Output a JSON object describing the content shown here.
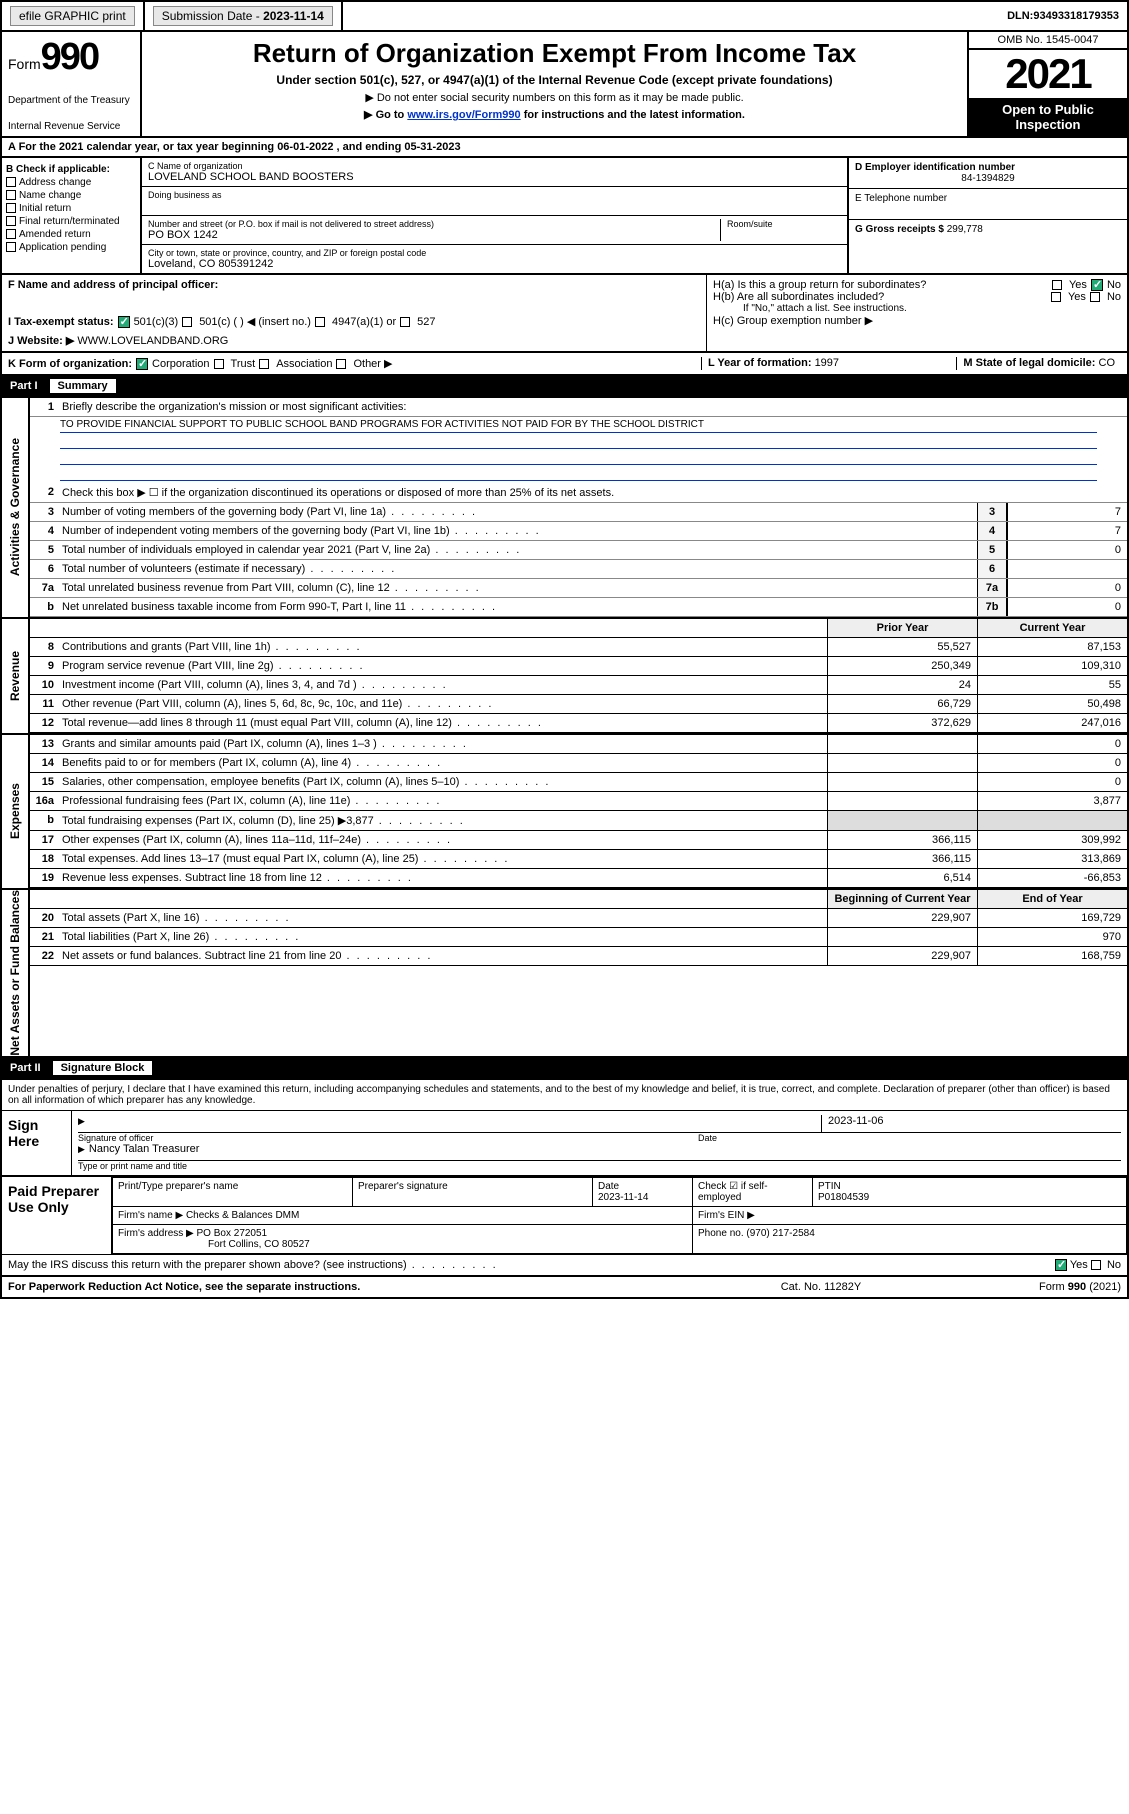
{
  "topbar": {
    "efile": "efile GRAPHIC print",
    "submission_label": "Submission Date - ",
    "submission_date": "2023-11-14",
    "dln_label": "DLN: ",
    "dln": "93493318179353"
  },
  "header": {
    "form_label": "Form",
    "form_no": "990",
    "dept": "Department of the Treasury",
    "irs": "Internal Revenue Service",
    "title": "Return of Organization Exempt From Income Tax",
    "subtitle": "Under section 501(c), 527, or 4947(a)(1) of the Internal Revenue Code (except private foundations)",
    "note1": "▶ Do not enter social security numbers on this form as it may be made public.",
    "note2_pre": "▶ Go to ",
    "note2_link": "www.irs.gov/Form990",
    "note2_post": " for instructions and the latest information.",
    "omb": "OMB No. 1545-0047",
    "year": "2021",
    "inspect": "Open to Public Inspection"
  },
  "rowA": "A For the 2021 calendar year, or tax year beginning 06-01-2022   , and ending 05-31-2023",
  "boxB": {
    "label": "B Check if applicable:",
    "items": [
      "Address change",
      "Name change",
      "Initial return",
      "Final return/terminated",
      "Amended return",
      "Application pending"
    ]
  },
  "boxC": {
    "name_lbl": "C Name of organization",
    "name": "LOVELAND SCHOOL BAND BOOSTERS",
    "dba_lbl": "Doing business as",
    "addr_lbl": "Number and street (or P.O. box if mail is not delivered to street address)",
    "room_lbl": "Room/suite",
    "addr": "PO BOX 1242",
    "city_lbl": "City or town, state or province, country, and ZIP or foreign postal code",
    "city": "Loveland, CO  805391242"
  },
  "boxD": {
    "lbl": "D Employer identification number",
    "val": "84-1394829"
  },
  "boxE": {
    "lbl": "E Telephone number"
  },
  "boxG": {
    "lbl": "G Gross receipts $ ",
    "val": "299,778"
  },
  "rowF": "F  Name and address of principal officer:",
  "rowH": {
    "ha": "H(a)  Is this a group return for subordinates?",
    "hb": "H(b)  Are all subordinates included?",
    "hb_note": "If \"No,\" attach a list. See instructions.",
    "hc": "H(c)  Group exemption number ▶",
    "yes": "Yes",
    "no": "No"
  },
  "rowI": {
    "lbl": "I   Tax-exempt status:",
    "o1": "501(c)(3)",
    "o2": "501(c) (  ) ◀ (insert no.)",
    "o3": "4947(a)(1) or",
    "o4": "527"
  },
  "rowJ": {
    "lbl": "J   Website: ▶",
    "val": "WWW.LOVELANDBAND.ORG"
  },
  "rowK": {
    "lbl": "K Form of organization:",
    "o1": "Corporation",
    "o2": "Trust",
    "o3": "Association",
    "o4": "Other ▶"
  },
  "rowL": {
    "lbl": "L Year of formation: ",
    "val": "1997"
  },
  "rowM": {
    "lbl": "M State of legal domicile: ",
    "val": "CO"
  },
  "part1": {
    "label": "Part I",
    "title": "Summary"
  },
  "summary": {
    "q1": "Briefly describe the organization's mission or most significant activities:",
    "mission": "TO PROVIDE FINANCIAL SUPPORT TO PUBLIC SCHOOL BAND PROGRAMS FOR ACTIVITIES NOT PAID FOR BY THE SCHOOL DISTRICT",
    "q2": "Check this box ▶ ☐  if the organization discontinued its operations or disposed of more than 25% of its net assets.",
    "lines_gov": [
      {
        "n": "3",
        "t": "Number of voting members of the governing body (Part VI, line 1a)",
        "box": "3",
        "v": "7"
      },
      {
        "n": "4",
        "t": "Number of independent voting members of the governing body (Part VI, line 1b)",
        "box": "4",
        "v": "7"
      },
      {
        "n": "5",
        "t": "Total number of individuals employed in calendar year 2021 (Part V, line 2a)",
        "box": "5",
        "v": "0"
      },
      {
        "n": "6",
        "t": "Total number of volunteers (estimate if necessary)",
        "box": "6",
        "v": ""
      },
      {
        "n": "7a",
        "t": "Total unrelated business revenue from Part VIII, column (C), line 12",
        "box": "7a",
        "v": "0"
      },
      {
        "n": "b",
        "t": "Net unrelated business taxable income from Form 990-T, Part I, line 11",
        "box": "7b",
        "v": "0"
      }
    ],
    "colhdr": {
      "prior": "Prior Year",
      "current": "Current Year",
      "beg": "Beginning of Current Year",
      "end": "End of Year"
    },
    "revenue": [
      {
        "n": "8",
        "t": "Contributions and grants (Part VIII, line 1h)",
        "p": "55,527",
        "c": "87,153"
      },
      {
        "n": "9",
        "t": "Program service revenue (Part VIII, line 2g)",
        "p": "250,349",
        "c": "109,310"
      },
      {
        "n": "10",
        "t": "Investment income (Part VIII, column (A), lines 3, 4, and 7d )",
        "p": "24",
        "c": "55"
      },
      {
        "n": "11",
        "t": "Other revenue (Part VIII, column (A), lines 5, 6d, 8c, 9c, 10c, and 11e)",
        "p": "66,729",
        "c": "50,498"
      },
      {
        "n": "12",
        "t": "Total revenue—add lines 8 through 11 (must equal Part VIII, column (A), line 12)",
        "p": "372,629",
        "c": "247,016"
      }
    ],
    "expenses": [
      {
        "n": "13",
        "t": "Grants and similar amounts paid (Part IX, column (A), lines 1–3 )",
        "p": "",
        "c": "0"
      },
      {
        "n": "14",
        "t": "Benefits paid to or for members (Part IX, column (A), line 4)",
        "p": "",
        "c": "0"
      },
      {
        "n": "15",
        "t": "Salaries, other compensation, employee benefits (Part IX, column (A), lines 5–10)",
        "p": "",
        "c": "0"
      },
      {
        "n": "16a",
        "t": "Professional fundraising fees (Part IX, column (A), line 11e)",
        "p": "",
        "c": "3,877"
      },
      {
        "n": "b",
        "t": "Total fundraising expenses (Part IX, column (D), line 25) ▶3,877",
        "p": "shade",
        "c": "shade"
      },
      {
        "n": "17",
        "t": "Other expenses (Part IX, column (A), lines 11a–11d, 11f–24e)",
        "p": "366,115",
        "c": "309,992"
      },
      {
        "n": "18",
        "t": "Total expenses. Add lines 13–17 (must equal Part IX, column (A), line 25)",
        "p": "366,115",
        "c": "313,869"
      },
      {
        "n": "19",
        "t": "Revenue less expenses. Subtract line 18 from line 12",
        "p": "6,514",
        "c": "-66,853"
      }
    ],
    "netassets": [
      {
        "n": "20",
        "t": "Total assets (Part X, line 16)",
        "p": "229,907",
        "c": "169,729"
      },
      {
        "n": "21",
        "t": "Total liabilities (Part X, line 26)",
        "p": "",
        "c": "970"
      },
      {
        "n": "22",
        "t": "Net assets or fund balances. Subtract line 21 from line 20",
        "p": "229,907",
        "c": "168,759"
      }
    ],
    "vlabels": {
      "gov": "Activities & Governance",
      "rev": "Revenue",
      "exp": "Expenses",
      "net": "Net Assets or Fund Balances"
    }
  },
  "part2": {
    "label": "Part II",
    "title": "Signature Block"
  },
  "sig": {
    "penalty": "Under penalties of perjury, I declare that I have examined this return, including accompanying schedules and statements, and to the best of my knowledge and belief, it is true, correct, and complete. Declaration of preparer (other than officer) is based on all information of which preparer has any knowledge.",
    "sign_here": "Sign Here",
    "sig_officer": "Signature of officer",
    "date": "Date",
    "sig_date": "2023-11-06",
    "officer_name": "Nancy Talan  Treasurer",
    "name_title": "Type or print name and title",
    "paid": "Paid Preparer Use Only",
    "prep_name_lbl": "Print/Type preparer's name",
    "prep_sig_lbl": "Preparer's signature",
    "prep_date_lbl": "Date",
    "prep_date": "2023-11-14",
    "check_if": "Check ☑ if self-employed",
    "ptin_lbl": "PTIN",
    "ptin": "P01804539",
    "firm_name_lbl": "Firm's name   ▶",
    "firm_name": "Checks & Balances DMM",
    "firm_ein_lbl": "Firm's EIN ▶",
    "firm_addr_lbl": "Firm's address ▶",
    "firm_addr1": "PO Box 272051",
    "firm_addr2": "Fort Collins, CO  80527",
    "phone_lbl": "Phone no. ",
    "phone": "(970) 217-2584",
    "discuss": "May the IRS discuss this return with the preparer shown above? (see instructions)"
  },
  "footer": {
    "left": "For Paperwork Reduction Act Notice, see the separate instructions.",
    "mid": "Cat. No. 11282Y",
    "right": "Form 990 (2021)"
  }
}
